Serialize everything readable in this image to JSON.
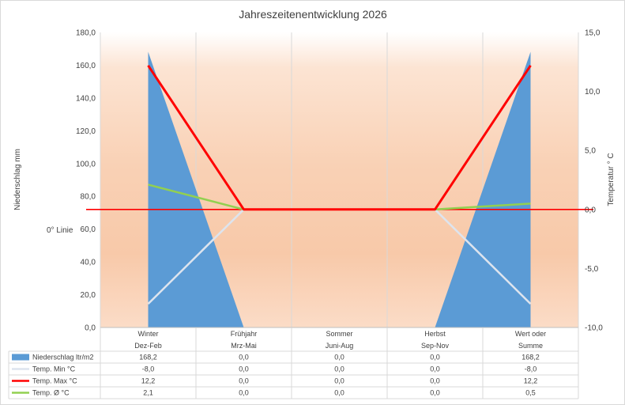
{
  "chart_data": {
    "type": "area",
    "title": "Jahreszeitenentwicklung 2026",
    "categories": [
      [
        "Winter",
        "Dez-Feb"
      ],
      [
        "Frühjahr",
        "Mrz-Mai"
      ],
      [
        "Sommer",
        "Juni-Aug"
      ],
      [
        "Herbst",
        "Sep-Nov"
      ],
      [
        "Wert oder",
        "Summe"
      ]
    ],
    "y_left": {
      "label": "Niederschlag mm",
      "range": [
        0,
        180
      ],
      "ticks": [
        "0,0",
        "20,0",
        "40,0",
        "60,0",
        "80,0",
        "100,0",
        "120,0",
        "140,0",
        "160,0",
        "180,0"
      ]
    },
    "y_right": {
      "label": "Temperatur ° C",
      "range": [
        -10,
        15
      ],
      "ticks": [
        "-10,0",
        "-5,0",
        "0,0",
        "5,0",
        "10,0",
        "15,0"
      ]
    },
    "zero_line_label": "0° Linie",
    "grid": "vertical",
    "legend_position": "table-bottom",
    "series": [
      {
        "name": "Niederschlag ltr/m2",
        "kind": "area",
        "axis": "left",
        "color": "#5b9bd5",
        "values": [
          168.2,
          0,
          0,
          0,
          168.2
        ],
        "labels": [
          "168,2",
          "0,0",
          "0,0",
          "0,0",
          "168,2"
        ]
      },
      {
        "name": "Temp. Min °C",
        "kind": "line",
        "axis": "right",
        "color": "#dde4ee",
        "values": [
          -8.0,
          0,
          0,
          0,
          -8.0
        ],
        "labels": [
          "-8,0",
          "0,0",
          "0,0",
          "0,0",
          "-8,0"
        ]
      },
      {
        "name": "Temp. Max °C",
        "kind": "line",
        "axis": "right",
        "color": "#ff0000",
        "values": [
          12.2,
          0,
          0,
          0,
          12.2
        ],
        "labels": [
          "12,2",
          "0,0",
          "0,0",
          "0,0",
          "12,2"
        ]
      },
      {
        "name": "Temp. Ø °C",
        "kind": "line",
        "axis": "right",
        "color": "#92d050",
        "values": [
          2.1,
          0,
          0,
          0,
          0.5
        ],
        "labels": [
          "2,1",
          "0,0",
          "0,0",
          "0,0",
          "0,5"
        ]
      }
    ]
  }
}
